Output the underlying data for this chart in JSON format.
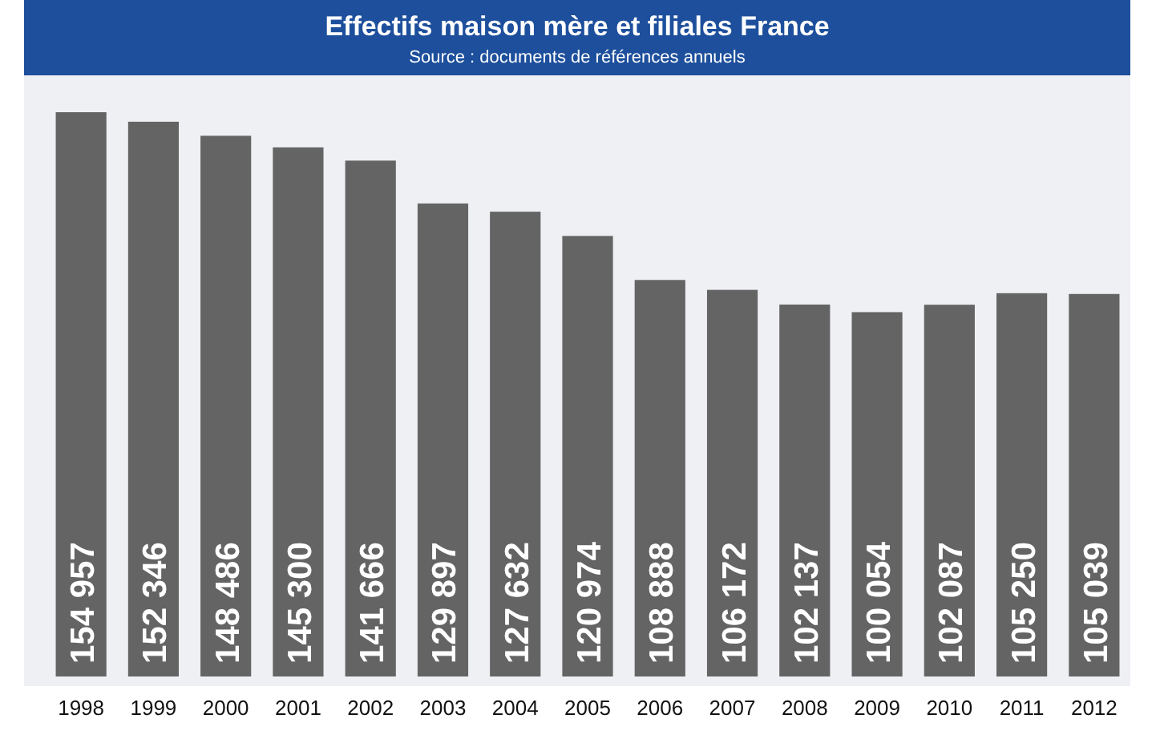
{
  "chart_data": {
    "type": "bar",
    "title": "Effectifs maison mère et filiales France",
    "subtitle": "Source : documents de références annuels",
    "categories": [
      "1998",
      "1999",
      "2000",
      "2001",
      "2002",
      "2003",
      "2004",
      "2005",
      "2006",
      "2007",
      "2008",
      "2009",
      "2010",
      "2011",
      "2012"
    ],
    "values": [
      154957,
      152346,
      148486,
      145300,
      141666,
      129897,
      127632,
      120974,
      108888,
      106172,
      102137,
      100054,
      102087,
      105250,
      105039
    ],
    "value_labels": [
      "154 957",
      "152 346",
      "148 486",
      "145 300",
      "141 666",
      "129 897",
      "127 632",
      "120 974",
      "108 888",
      "106 172",
      "102 137",
      "100 054",
      "102 087",
      "105 250",
      "105 039"
    ],
    "color": "#646464"
  }
}
